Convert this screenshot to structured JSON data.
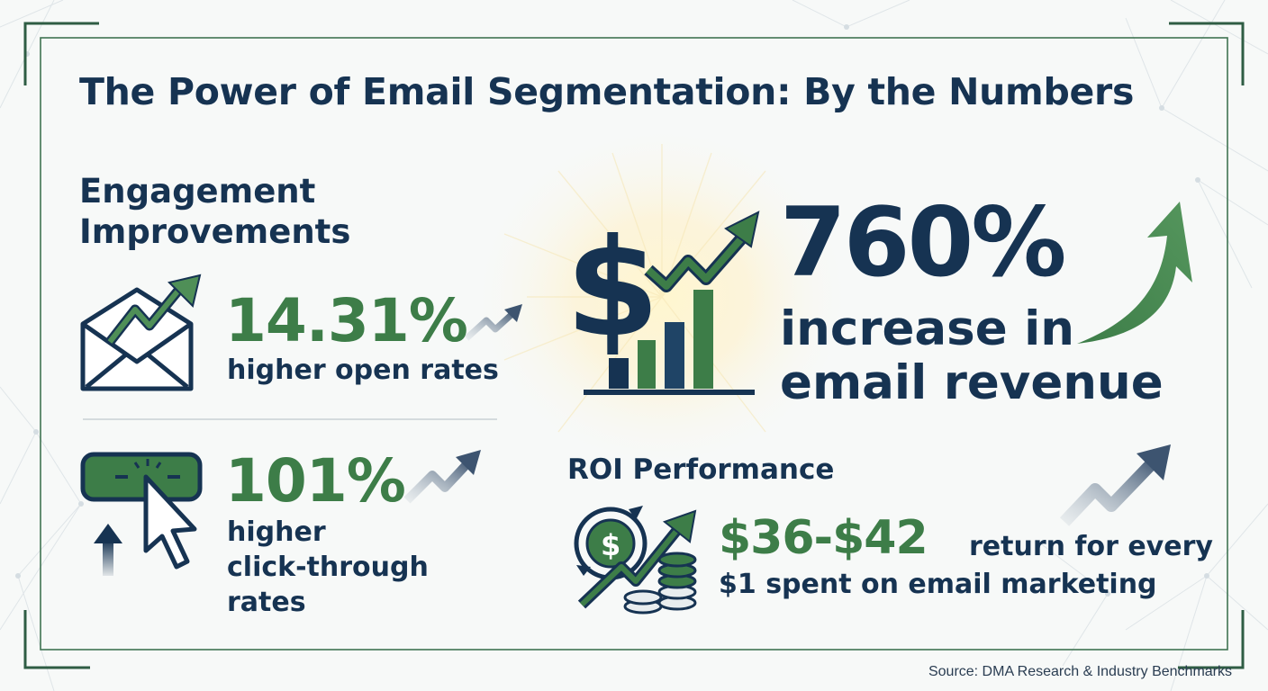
{
  "title": "The Power of Email Segmentation: By the Numbers",
  "engagement": {
    "heading_line1": "Engagement",
    "heading_line2": "Improvements",
    "open_rate": {
      "value": "14.31%",
      "label": "higher open rates",
      "icon": "envelope-trend-icon"
    },
    "click_rate": {
      "value": "101%",
      "label_line1": "higher",
      "label_line2": "click-through",
      "label_line3": "rates",
      "icon": "cursor-click-button-icon"
    }
  },
  "revenue": {
    "value": "760%",
    "label_line1": "increase in",
    "label_line2": "email revenue",
    "icon": "dollar-bar-chart-icon"
  },
  "roi": {
    "heading": "ROI Performance",
    "value": "$36-$42",
    "label_line1": "return for every",
    "label_line2": "$1 spent on email marketing",
    "icon": "coin-stack-growth-icon"
  },
  "source": "Source: DMA Research & Industry Benchmarks",
  "colors": {
    "navy": "#163352",
    "green": "#3d7d48",
    "frame": "#3f7352",
    "background": "#f7f9f8"
  }
}
